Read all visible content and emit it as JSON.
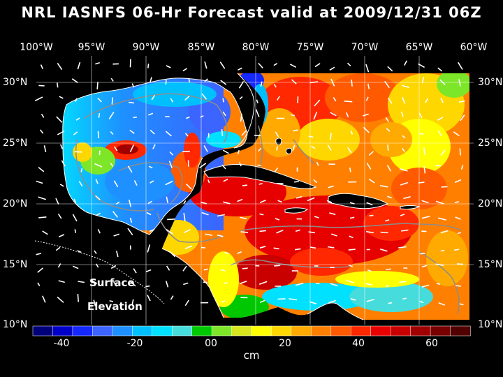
{
  "title": "NRL IASNFS  06-Hr Forecast valid at 2009/12/31 06Z",
  "longitude_labels": [
    "100°W",
    "95°W",
    "90°W",
    "85°W",
    "80°W",
    "75°W",
    "70°W",
    "65°W",
    "60°W"
  ],
  "latitude_labels": [
    "30°N",
    "25°N",
    "20°N",
    "15°N",
    "10°N"
  ],
  "map_caption": {
    "line1": "Surface",
    "line2": "Elevation"
  },
  "colorbar": {
    "labels": [
      "-40",
      "-20",
      "00",
      "20",
      "40",
      "60"
    ],
    "unit": "cm",
    "colors": [
      "#00007a",
      "#0000c8",
      "#1428ff",
      "#3c64ff",
      "#1e90ff",
      "#00bfff",
      "#00e0ff",
      "#46dcdc",
      "#00c800",
      "#7ee628",
      "#d7e61e",
      "#ffff00",
      "#ffd700",
      "#ffaa00",
      "#ff8000",
      "#ff5a00",
      "#ff2800",
      "#e60000",
      "#c80000",
      "#a00000",
      "#780000",
      "#500000"
    ]
  },
  "legend_colors": {
    "land": "#000000",
    "coast": "#ffffff",
    "grid": "#ffffff",
    "isobath": "#8c8c8c",
    "vector": "#ffffff"
  }
}
